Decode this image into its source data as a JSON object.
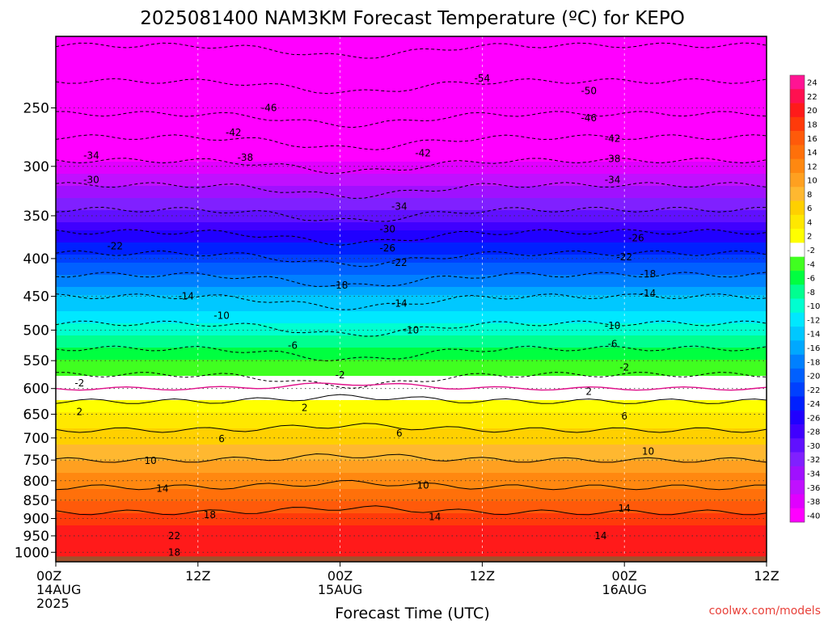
{
  "title": "2025081400 NAM3KM Forecast Temperature (ºC) for KEPO",
  "xlabel": "Forecast Time (UTC)",
  "credit": "coolwx.com/models",
  "chart_data": {
    "type": "heatmap",
    "title": "2025081400 NAM3KM Forecast Temperature (ºC) for KEPO",
    "xlabel": "Forecast Time (UTC)",
    "ylabel": "",
    "y_scale": "log (pressure, inverted)",
    "ylim": [
      1030,
      200
    ],
    "xlim_hours": [
      0,
      60
    ],
    "x_ticks": [
      {
        "hour": 0,
        "lines": [
          "00Z",
          "14AUG",
          "2025"
        ]
      },
      {
        "hour": 12,
        "lines": [
          "12Z"
        ]
      },
      {
        "hour": 24,
        "lines": [
          "00Z",
          "15AUG"
        ]
      },
      {
        "hour": 36,
        "lines": [
          "12Z"
        ]
      },
      {
        "hour": 48,
        "lines": [
          "00Z",
          "16AUG"
        ]
      },
      {
        "hour": 60,
        "lines": [
          "12Z"
        ]
      }
    ],
    "y_ticks": [
      250,
      300,
      350,
      400,
      450,
      500,
      550,
      600,
      650,
      700,
      750,
      800,
      850,
      900,
      950,
      1000
    ],
    "colorbar": {
      "labels": [
        "24",
        "22",
        "20",
        "18",
        "16",
        "14",
        "12",
        "10",
        "8",
        "6",
        "4",
        "2",
        "-2",
        "-4",
        "-6",
        "-8",
        "-10",
        "-12",
        "-14",
        "-16",
        "-18",
        "-20",
        "-22",
        "-24",
        "-26",
        "-28",
        "-30",
        "-32",
        "-34",
        "-36",
        "-38",
        "-40"
      ],
      "colors": [
        "#ff1493",
        "#ff1050",
        "#ff1a1a",
        "#ff3a0a",
        "#ff5a0a",
        "#ff700a",
        "#ff8810",
        "#ffa020",
        "#ffb830",
        "#ffd000",
        "#ffe800",
        "#ffff00",
        "#ffffff",
        "#40ff20",
        "#00ff40",
        "#00ff90",
        "#00ffd0",
        "#00e8ff",
        "#00c8ff",
        "#00a8ff",
        "#0080ff",
        "#0060ff",
        "#0040ff",
        "#0020ff",
        "#2000ff",
        "#4000ff",
        "#6010ff",
        "#8020ff",
        "#a010ff",
        "#c010ff",
        "#e000ff",
        "#ff00ff"
      ]
    },
    "temperature_profile": [
      {
        "p": 1000,
        "t": 20
      },
      {
        "p": 950,
        "t": 21
      },
      {
        "p": 900,
        "t": 19
      },
      {
        "p": 850,
        "t": 16
      },
      {
        "p": 800,
        "t": 13
      },
      {
        "p": 750,
        "t": 10
      },
      {
        "p": 700,
        "t": 7
      },
      {
        "p": 650,
        "t": 4
      },
      {
        "p": 600,
        "t": 0
      },
      {
        "p": 550,
        "t": -4
      },
      {
        "p": 500,
        "t": -9
      },
      {
        "p": 450,
        "t": -14
      },
      {
        "p": 400,
        "t": -21
      },
      {
        "p": 350,
        "t": -29
      },
      {
        "p": 300,
        "t": -37
      },
      {
        "p": 250,
        "t": -47
      },
      {
        "p": 200,
        "t": -55
      }
    ],
    "contour_labels": [
      {
        "text": "-54",
        "hour": 36,
        "p": 228
      },
      {
        "text": "-50",
        "hour": 45,
        "p": 237
      },
      {
        "text": "-46",
        "hour": 18,
        "p": 250
      },
      {
        "text": "-46",
        "hour": 45,
        "p": 258
      },
      {
        "text": "-42",
        "hour": 15,
        "p": 270
      },
      {
        "text": "-42",
        "hour": 31,
        "p": 288
      },
      {
        "text": "-42",
        "hour": 47,
        "p": 275
      },
      {
        "text": "-38",
        "hour": 16,
        "p": 292
      },
      {
        "text": "-38",
        "hour": 47,
        "p": 293
      },
      {
        "text": "-34",
        "hour": 3,
        "p": 290
      },
      {
        "text": "-34",
        "hour": 29,
        "p": 340
      },
      {
        "text": "-34",
        "hour": 47,
        "p": 313
      },
      {
        "text": "-30",
        "hour": 3,
        "p": 313
      },
      {
        "text": "-30",
        "hour": 28,
        "p": 365
      },
      {
        "text": "-26",
        "hour": 28,
        "p": 387
      },
      {
        "text": "-26",
        "hour": 49,
        "p": 375
      },
      {
        "text": "-22",
        "hour": 5,
        "p": 385
      },
      {
        "text": "-22",
        "hour": 29,
        "p": 405
      },
      {
        "text": "-22",
        "hour": 48,
        "p": 398
      },
      {
        "text": "-18",
        "hour": 24,
        "p": 435
      },
      {
        "text": "-18",
        "hour": 50,
        "p": 420
      },
      {
        "text": "-14",
        "hour": 11,
        "p": 450
      },
      {
        "text": "-14",
        "hour": 29,
        "p": 460
      },
      {
        "text": "-14",
        "hour": 50,
        "p": 446
      },
      {
        "text": "-10",
        "hour": 14,
        "p": 478
      },
      {
        "text": "-10",
        "hour": 30,
        "p": 500
      },
      {
        "text": "-10",
        "hour": 47,
        "p": 493
      },
      {
        "text": "-6",
        "hour": 20,
        "p": 525
      },
      {
        "text": "-6",
        "hour": 47,
        "p": 522
      },
      {
        "text": "-2",
        "hour": 2,
        "p": 590
      },
      {
        "text": "-2",
        "hour": 24,
        "p": 575
      },
      {
        "text": "-2",
        "hour": 48,
        "p": 562
      },
      {
        "text": "2",
        "hour": 2,
        "p": 645
      },
      {
        "text": "2",
        "hour": 21,
        "p": 637
      },
      {
        "text": "2",
        "hour": 45,
        "p": 606
      },
      {
        "text": "6",
        "hour": 14,
        "p": 702
      },
      {
        "text": "6",
        "hour": 29,
        "p": 690
      },
      {
        "text": "6",
        "hour": 48,
        "p": 654
      },
      {
        "text": "10",
        "hour": 8,
        "p": 752
      },
      {
        "text": "10",
        "hour": 31,
        "p": 812
      },
      {
        "text": "10",
        "hour": 50,
        "p": 730
      },
      {
        "text": "14",
        "hour": 9,
        "p": 820
      },
      {
        "text": "14",
        "hour": 32,
        "p": 895
      },
      {
        "text": "14",
        "hour": 48,
        "p": 872
      },
      {
        "text": "14",
        "hour": 46,
        "p": 950
      },
      {
        "text": "18",
        "hour": 13,
        "p": 890
      },
      {
        "text": "18",
        "hour": 10,
        "p": 1000
      },
      {
        "text": "22",
        "hour": 10,
        "p": 950
      }
    ]
  }
}
